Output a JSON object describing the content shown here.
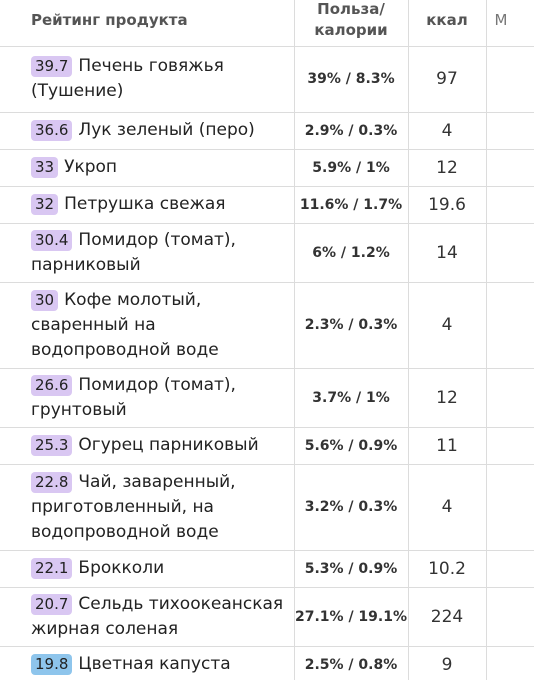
{
  "header": {
    "product": "Рейтинг продукта",
    "ratio_line1": "Польза/",
    "ratio_line2": "калории",
    "kcal": "ккал",
    "more": "М"
  },
  "rows": [
    {
      "rating": "39.7",
      "name": "Печень говяжья (Тушение)",
      "ratio": "39% / 8.3%",
      "kcal": "97",
      "badge_color": "#d9c7f2"
    },
    {
      "rating": "36.6",
      "name": "Лук зеленый (перо)",
      "ratio": "2.9% / 0.3%",
      "kcal": "4",
      "badge_color": "#d9c7f2"
    },
    {
      "rating": "33",
      "name": "Укроп",
      "ratio": "5.9% / 1%",
      "kcal": "12",
      "badge_color": "#d9c7f2"
    },
    {
      "rating": "32",
      "name": "Петрушка свежая",
      "ratio": "11.6% / 1.7%",
      "kcal": "19.6",
      "badge_color": "#d9c7f2"
    },
    {
      "rating": "30.4",
      "name": "Помидор (томат), парниковый",
      "ratio": "6% / 1.2%",
      "kcal": "14",
      "badge_color": "#d9c7f2"
    },
    {
      "rating": "30",
      "name": "Кофе молотый, сваренный на водопроводной воде",
      "ratio": "2.3% / 0.3%",
      "kcal": "4",
      "badge_color": "#d9c7f2"
    },
    {
      "rating": "26.6",
      "name": "Помидор (томат), грунтовый",
      "ratio": "3.7% / 1%",
      "kcal": "12",
      "badge_color": "#d9c7f2"
    },
    {
      "rating": "25.3",
      "name": "Огурец парниковый",
      "ratio": "5.6% / 0.9%",
      "kcal": "11",
      "badge_color": "#d9c7f2"
    },
    {
      "rating": "22.8",
      "name": "Чай, заваренный, приготовленный, на водопроводной воде",
      "ratio": "3.2% / 0.3%",
      "kcal": "4",
      "badge_color": "#d9c7f2"
    },
    {
      "rating": "22.1",
      "name": "Брокколи",
      "ratio": "5.3% / 0.9%",
      "kcal": "10.2",
      "badge_color": "#d9c7f2"
    },
    {
      "rating": "20.7",
      "name": "Сельдь тихоокеанская жирная соленая",
      "ratio": "27.1% / 19.1%",
      "kcal": "224",
      "badge_color": "#d9c7f2"
    },
    {
      "rating": "19.8",
      "name": "Цветная капуста",
      "ratio": "2.5% / 0.8%",
      "kcal": "9",
      "badge_color": "#8ec5ec"
    }
  ]
}
